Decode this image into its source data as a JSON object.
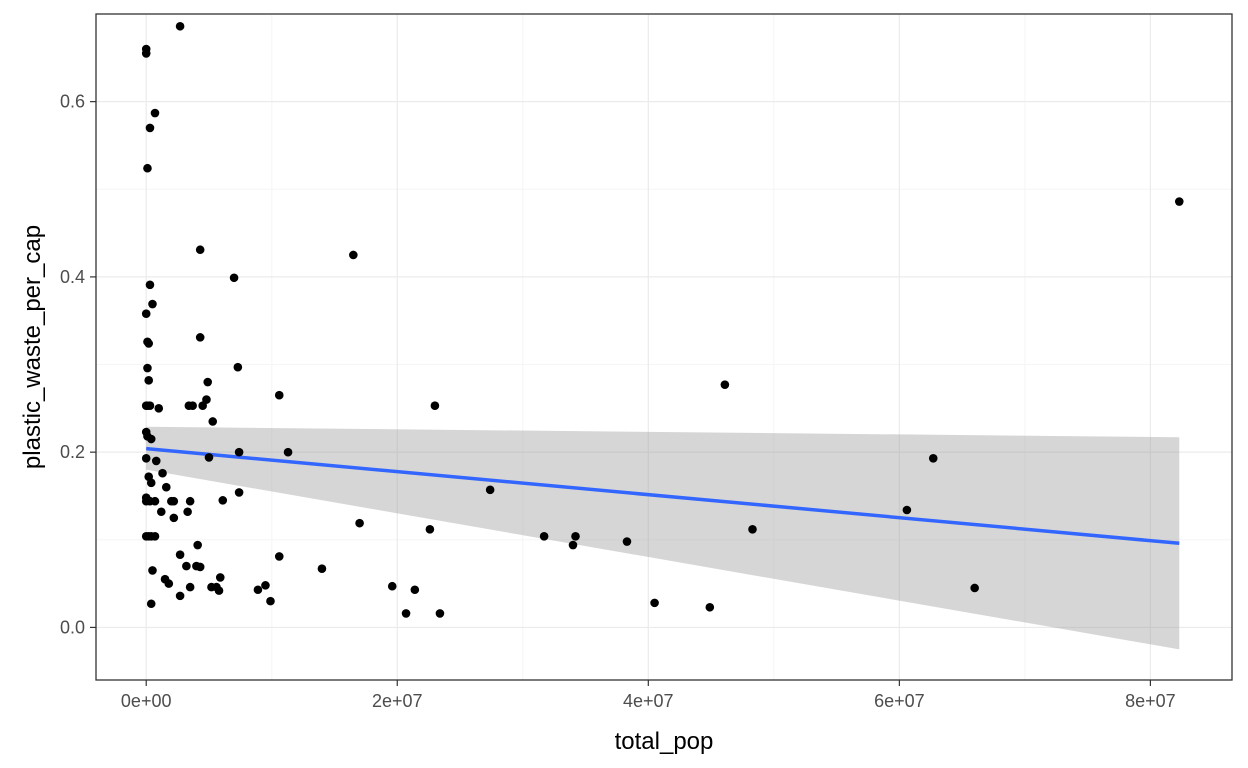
{
  "chart_data": {
    "type": "scatter",
    "title": "",
    "xlabel": "total_pop",
    "ylabel": "plastic_waste_per_cap",
    "xlim": [
      -4000000,
      86500000
    ],
    "ylim": [
      -0.06,
      0.7
    ],
    "x_ticks": [
      0,
      20000000,
      40000000,
      60000000,
      80000000
    ],
    "x_tick_labels": [
      "0e+00",
      "2e+07",
      "4e+07",
      "6e+07",
      "8e+07"
    ],
    "y_ticks": [
      0.0,
      0.2,
      0.4,
      0.6
    ],
    "y_tick_labels": [
      "0.0",
      "0.2",
      "0.4",
      "0.6"
    ],
    "grid": true,
    "colors": {
      "points": "#000000",
      "fit_line": "#3366FF",
      "ribbon": "#999999",
      "panel_border": "#333333",
      "grid_major": "#EBEBEB",
      "grid_minor": "#F5F5F5"
    },
    "points": [
      {
        "x": 0,
        "y": 0.66
      },
      {
        "x": 0,
        "y": 0.655
      },
      {
        "x": 300000,
        "y": 0.57
      },
      {
        "x": 700000,
        "y": 0.587
      },
      {
        "x": 100000,
        "y": 0.524
      },
      {
        "x": 2700000,
        "y": 0.686
      },
      {
        "x": 300000,
        "y": 0.391
      },
      {
        "x": 500000,
        "y": 0.369
      },
      {
        "x": 0,
        "y": 0.358
      },
      {
        "x": 100000,
        "y": 0.326
      },
      {
        "x": 200000,
        "y": 0.324
      },
      {
        "x": 100000,
        "y": 0.296
      },
      {
        "x": 200000,
        "y": 0.282
      },
      {
        "x": 0,
        "y": 0.253
      },
      {
        "x": 100000,
        "y": 0.253
      },
      {
        "x": 300000,
        "y": 0.253
      },
      {
        "x": 1000000,
        "y": 0.25
      },
      {
        "x": 0,
        "y": 0.223
      },
      {
        "x": 100000,
        "y": 0.218
      },
      {
        "x": 400000,
        "y": 0.215
      },
      {
        "x": 0,
        "y": 0.193
      },
      {
        "x": 800000,
        "y": 0.19
      },
      {
        "x": 200000,
        "y": 0.172
      },
      {
        "x": 1300000,
        "y": 0.176
      },
      {
        "x": 400000,
        "y": 0.165
      },
      {
        "x": 1600000,
        "y": 0.16
      },
      {
        "x": 0,
        "y": 0.148
      },
      {
        "x": 0,
        "y": 0.144
      },
      {
        "x": 300000,
        "y": 0.144
      },
      {
        "x": 700000,
        "y": 0.144
      },
      {
        "x": 2000000,
        "y": 0.144
      },
      {
        "x": 2200000,
        "y": 0.144
      },
      {
        "x": 3500000,
        "y": 0.144
      },
      {
        "x": 1200000,
        "y": 0.132
      },
      {
        "x": 2200000,
        "y": 0.125
      },
      {
        "x": 3300000,
        "y": 0.132
      },
      {
        "x": 0,
        "y": 0.104
      },
      {
        "x": 200000,
        "y": 0.104
      },
      {
        "x": 400000,
        "y": 0.104
      },
      {
        "x": 700000,
        "y": 0.104
      },
      {
        "x": 4100000,
        "y": 0.094
      },
      {
        "x": 2700000,
        "y": 0.083
      },
      {
        "x": 3200000,
        "y": 0.07
      },
      {
        "x": 4000000,
        "y": 0.07
      },
      {
        "x": 4300000,
        "y": 0.069
      },
      {
        "x": 500000,
        "y": 0.065
      },
      {
        "x": 1500000,
        "y": 0.055
      },
      {
        "x": 1800000,
        "y": 0.05
      },
      {
        "x": 3500000,
        "y": 0.046
      },
      {
        "x": 2700000,
        "y": 0.036
      },
      {
        "x": 400000,
        "y": 0.027
      },
      {
        "x": 4300000,
        "y": 0.431
      },
      {
        "x": 7000000,
        "y": 0.399
      },
      {
        "x": 4300000,
        "y": 0.331
      },
      {
        "x": 7300000,
        "y": 0.297
      },
      {
        "x": 4900000,
        "y": 0.28
      },
      {
        "x": 10600000,
        "y": 0.265
      },
      {
        "x": 4800000,
        "y": 0.26
      },
      {
        "x": 3400000,
        "y": 0.253
      },
      {
        "x": 3700000,
        "y": 0.253
      },
      {
        "x": 4500000,
        "y": 0.253
      },
      {
        "x": 5300000,
        "y": 0.235
      },
      {
        "x": 7400000,
        "y": 0.2
      },
      {
        "x": 11300000,
        "y": 0.2
      },
      {
        "x": 5000000,
        "y": 0.194
      },
      {
        "x": 7400000,
        "y": 0.154
      },
      {
        "x": 6100000,
        "y": 0.145
      },
      {
        "x": 10600000,
        "y": 0.081
      },
      {
        "x": 5900000,
        "y": 0.057
      },
      {
        "x": 9500000,
        "y": 0.048
      },
      {
        "x": 5200000,
        "y": 0.046
      },
      {
        "x": 5600000,
        "y": 0.046
      },
      {
        "x": 8900000,
        "y": 0.043
      },
      {
        "x": 5800000,
        "y": 0.042
      },
      {
        "x": 9900000,
        "y": 0.03
      },
      {
        "x": 16500000,
        "y": 0.425
      },
      {
        "x": 23000000,
        "y": 0.253
      },
      {
        "x": 17000000,
        "y": 0.119
      },
      {
        "x": 22600000,
        "y": 0.112
      },
      {
        "x": 14000000,
        "y": 0.067
      },
      {
        "x": 19600000,
        "y": 0.047
      },
      {
        "x": 21400000,
        "y": 0.043
      },
      {
        "x": 20700000,
        "y": 0.016
      },
      {
        "x": 23400000,
        "y": 0.016
      },
      {
        "x": 27400000,
        "y": 0.157
      },
      {
        "x": 31700000,
        "y": 0.104
      },
      {
        "x": 34200000,
        "y": 0.104
      },
      {
        "x": 34000000,
        "y": 0.094
      },
      {
        "x": 38300000,
        "y": 0.098
      },
      {
        "x": 40500000,
        "y": 0.028
      },
      {
        "x": 44900000,
        "y": 0.023
      },
      {
        "x": 46100000,
        "y": 0.277
      },
      {
        "x": 48300000,
        "y": 0.112
      },
      {
        "x": 60600000,
        "y": 0.134
      },
      {
        "x": 62700000,
        "y": 0.193
      },
      {
        "x": 66000000,
        "y": 0.045
      },
      {
        "x": 82300000,
        "y": 0.486
      }
    ],
    "fit": {
      "method": "lm",
      "x": [
        0,
        82300000
      ],
      "y": [
        0.204,
        0.096
      ],
      "ci_lower": [
        0.18,
        -0.025
      ],
      "ci_upper": [
        0.229,
        0.217
      ]
    }
  }
}
